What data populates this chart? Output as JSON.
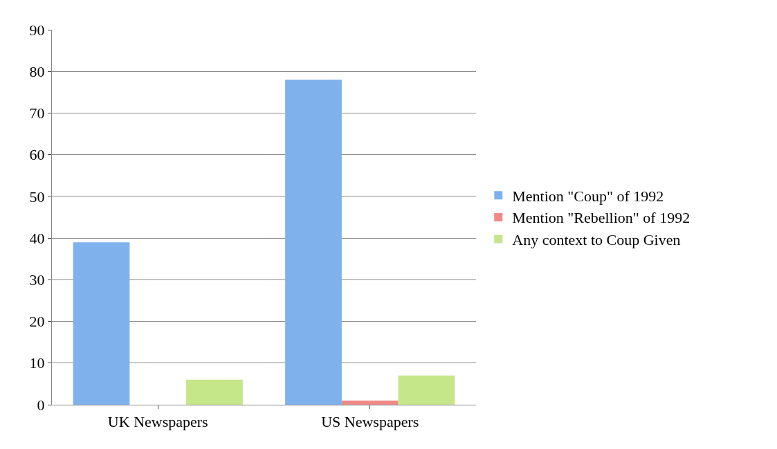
{
  "chart_data": {
    "type": "bar",
    "categories": [
      "UK Newspapers",
      "US Newspapers"
    ],
    "series": [
      {
        "name": "Mention \"Coup\" of 1992",
        "color": "#7fb1ec",
        "values": [
          39,
          78
        ]
      },
      {
        "name": "Mention \"Rebellion\" of 1992",
        "color": "#ee8a86",
        "values": [
          0,
          1
        ]
      },
      {
        "name": "Any context to Coup Given",
        "color": "#c6e68a",
        "values": [
          6,
          7
        ]
      }
    ],
    "ylim": [
      0,
      90
    ],
    "yticks": [
      0,
      10,
      20,
      30,
      40,
      50,
      60,
      70,
      80,
      90
    ],
    "grid": "y",
    "legend": "right"
  }
}
